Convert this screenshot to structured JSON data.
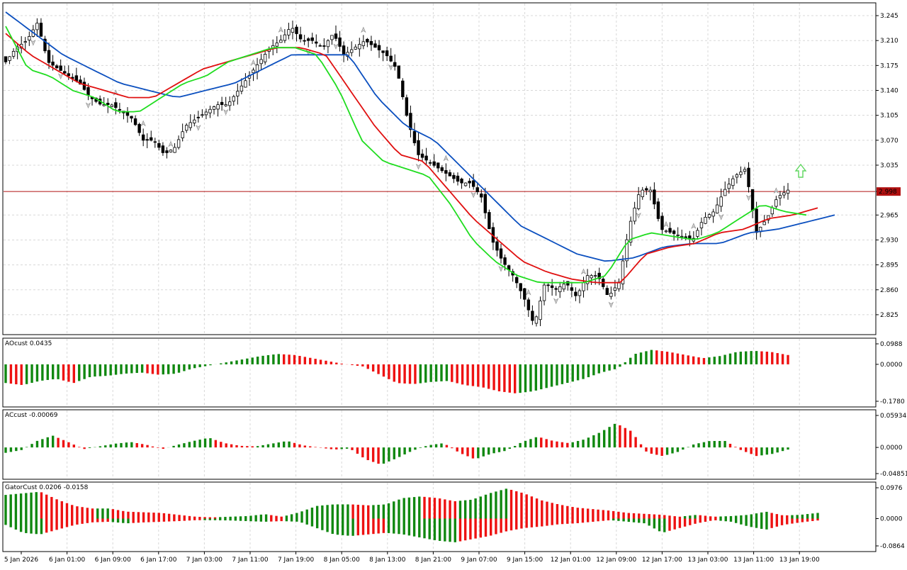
{
  "chart_data": [
    {
      "type": "candlestick",
      "panel": "main",
      "yticks": [
        "3.245",
        "3.210",
        "3.175",
        "3.140",
        "3.105",
        "3.070",
        "3.035",
        "2.998",
        "2.965",
        "2.930",
        "2.895",
        "2.860",
        "2.825"
      ],
      "ylim": [
        2.805,
        3.255
      ],
      "current_price": "2.998",
      "current_price_value": 2.998,
      "up_arrow_color": "#5ed65e",
      "series": [
        {
          "name": "Alligator jaw",
          "color": "#0b4fbf"
        },
        {
          "name": "Alligator teeth",
          "color": "#e01010"
        },
        {
          "name": "Alligator lips",
          "color": "#20dd20"
        }
      ],
      "close_anchors": [
        3.18,
        3.2,
        3.21,
        3.235,
        3.18,
        3.17,
        3.16,
        3.15,
        3.13,
        3.12,
        3.12,
        3.11,
        3.1,
        3.07,
        3.07,
        3.05,
        3.06,
        3.09,
        3.1,
        3.11,
        3.12,
        3.12,
        3.14,
        3.16,
        3.18,
        3.2,
        3.21,
        3.23,
        3.21,
        3.21,
        3.2,
        3.22,
        3.19,
        3.2,
        3.21,
        3.2,
        3.19,
        3.17,
        3.1,
        3.05,
        3.04,
        3.03,
        3.02,
        3.01,
        3.01,
        2.99,
        2.93,
        2.9,
        2.88,
        2.85,
        2.81,
        2.87,
        2.86,
        2.87,
        2.85,
        2.88,
        2.88,
        2.85,
        2.87,
        2.95,
        3.0,
        3.0,
        2.945,
        2.94,
        2.935,
        2.93,
        2.96,
        2.97,
        3.0,
        3.02,
        3.03,
        2.94,
        2.96,
        2.99,
        3.0
      ],
      "lips_anchors": [
        3.23,
        3.17,
        3.16,
        3.14,
        3.13,
        3.11,
        3.11,
        3.13,
        3.15,
        3.16,
        3.18,
        3.19,
        3.2,
        3.2,
        3.19,
        3.14,
        3.07,
        3.04,
        3.03,
        3.02,
        2.98,
        2.93,
        2.9,
        2.88,
        2.87,
        2.87,
        2.87,
        2.88,
        2.93,
        2.94,
        2.935,
        2.93,
        2.94,
        2.96,
        2.98,
        2.97,
        2.965
      ],
      "teeth_anchors": [
        3.22,
        3.19,
        3.17,
        3.15,
        3.14,
        3.13,
        3.13,
        3.15,
        3.17,
        3.18,
        3.19,
        3.2,
        3.2,
        3.19,
        3.14,
        3.09,
        3.05,
        3.04,
        3.0,
        2.96,
        2.93,
        2.9,
        2.885,
        2.875,
        2.87,
        2.87,
        2.91,
        2.92,
        2.925,
        2.94,
        2.945,
        2.96,
        2.965,
        2.975
      ],
      "jaw_anchors": [
        3.25,
        3.22,
        3.19,
        3.17,
        3.15,
        3.14,
        3.13,
        3.14,
        3.15,
        3.17,
        3.19,
        3.19,
        3.19,
        3.13,
        3.09,
        3.07,
        3.03,
        2.99,
        2.95,
        2.93,
        2.91,
        2.9,
        2.905,
        2.92,
        2.925,
        2.925,
        2.94,
        2.945,
        2.955,
        2.965
      ]
    },
    {
      "type": "histogram",
      "panel": "ao",
      "label": "AOcust 0.0435",
      "yticks": [
        "0.0988",
        "0.0000",
        "-0.1780"
      ],
      "ylim": [
        -0.178,
        0.0988
      ],
      "up_color": "#108810",
      "down_color": "#ee1111",
      "anchors": [
        -0.09,
        -0.1,
        -0.08,
        -0.07,
        -0.09,
        -0.06,
        -0.055,
        -0.045,
        -0.04,
        -0.05,
        -0.045,
        -0.02,
        -0.005,
        0.01,
        0.025,
        0.04,
        0.05,
        0.045,
        0.03,
        0.015,
        0.0,
        -0.01,
        -0.05,
        -0.09,
        -0.095,
        -0.085,
        -0.08,
        -0.1,
        -0.11,
        -0.13,
        -0.14,
        -0.13,
        -0.11,
        -0.09,
        -0.07,
        -0.04,
        -0.02,
        0.05,
        0.07,
        0.06,
        0.045,
        0.03,
        0.04,
        0.06,
        0.065,
        0.06,
        0.045
      ]
    },
    {
      "type": "histogram",
      "panel": "ac",
      "label": "ACcust -0.00069",
      "yticks": [
        "0.05934",
        "0.0000",
        "-0.04851"
      ],
      "ylim": [
        -0.04851,
        0.05934
      ],
      "up_color": "#108810",
      "down_color": "#ee1111",
      "anchors": [
        -0.01,
        -0.005,
        0.012,
        0.022,
        0.01,
        -0.003,
        0.002,
        0.007,
        0.01,
        0.005,
        -0.003,
        0.005,
        0.012,
        0.018,
        0.008,
        0.003,
        0.002,
        0.007,
        0.012,
        0.004,
        0.0,
        -0.004,
        -0.002,
        -0.022,
        -0.032,
        -0.02,
        -0.006,
        0.004,
        0.008,
        -0.01,
        -0.022,
        -0.012,
        -0.006,
        0.01,
        0.02,
        0.012,
        0.008,
        0.015,
        0.028,
        0.045,
        0.03,
        -0.01,
        -0.016,
        -0.008,
        0.006,
        0.012,
        0.012,
        -0.005,
        -0.016,
        -0.012,
        -0.004
      ]
    },
    {
      "type": "histogram",
      "panel": "gator",
      "label": "GatorCust 0.0206 -0.0158",
      "yticks": [
        "0.0976",
        "0.0000",
        "-0.0864"
      ],
      "ylim": [
        -0.0864,
        0.0976
      ],
      "up_color": "#108810",
      "down_color": "#ee1111",
      "upper_anchors": [
        0.075,
        0.08,
        0.085,
        0.06,
        0.04,
        0.032,
        0.032,
        0.022,
        0.02,
        0.018,
        0.012,
        0.006,
        0.004,
        0.006,
        0.008,
        0.014,
        0.006,
        0.02,
        0.04,
        0.045,
        0.045,
        0.042,
        0.045,
        0.065,
        0.07,
        0.065,
        0.055,
        0.06,
        0.08,
        0.095,
        0.08,
        0.058,
        0.045,
        0.035,
        0.03,
        0.025,
        0.018,
        0.015,
        0.012,
        0.006,
        0.012,
        0.006,
        0.008,
        0.012,
        0.022,
        0.01,
        0.012,
        0.018
      ],
      "lower_anchors": [
        -0.02,
        -0.045,
        -0.05,
        -0.035,
        -0.02,
        -0.012,
        -0.01,
        -0.015,
        -0.012,
        -0.01,
        -0.008,
        -0.005,
        -0.005,
        -0.006,
        -0.008,
        -0.01,
        -0.008,
        -0.01,
        -0.03,
        -0.05,
        -0.055,
        -0.05,
        -0.045,
        -0.05,
        -0.06,
        -0.07,
        -0.075,
        -0.065,
        -0.055,
        -0.04,
        -0.03,
        -0.025,
        -0.018,
        -0.015,
        -0.01,
        -0.005,
        -0.01,
        -0.015,
        -0.045,
        -0.03,
        -0.015,
        -0.005,
        -0.01,
        -0.025,
        -0.035,
        -0.02,
        -0.012,
        -0.006
      ]
    }
  ],
  "time_axis": {
    "labels": [
      "5 Jan 2026",
      "6 Jan 01:00",
      "6 Jan 09:00",
      "6 Jan 17:00",
      "7 Jan 03:00",
      "7 Jan 11:00",
      "7 Jan 19:00",
      "8 Jan 05:00",
      "8 Jan 13:00",
      "8 Jan 21:00",
      "9 Jan 07:00",
      "9 Jan 15:00",
      "12 Jan 01:00",
      "12 Jan 09:00",
      "12 Jan 17:00",
      "13 Jan 03:00",
      "13 Jan 11:00",
      "13 Jan 19:00"
    ]
  }
}
